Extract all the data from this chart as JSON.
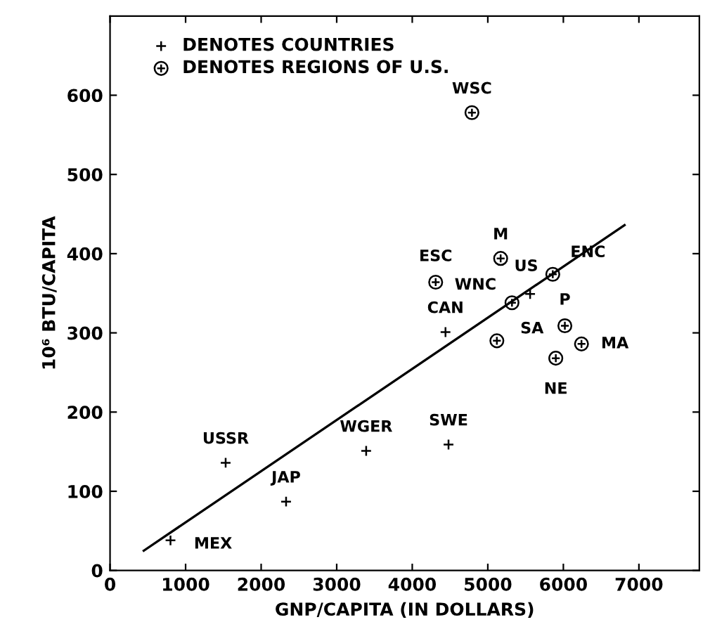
{
  "chart_data": {
    "type": "scatter",
    "xlabel": "GNP/CAPITA (IN DOLLARS)",
    "ylabel": "10⁶ BTU/CAPITA",
    "xlim": [
      0,
      7800
    ],
    "ylim": [
      0,
      700
    ],
    "xticks": [
      0,
      1000,
      2000,
      3000,
      4000,
      5000,
      6000,
      7000
    ],
    "yticks": [
      0,
      100,
      200,
      300,
      400,
      500,
      600
    ],
    "grid": false,
    "legend": "top left",
    "series": [
      {
        "name": "DENOTES COUNTRIES",
        "marker": "cross",
        "color": "#000000",
        "x": [
          800,
          1530,
          2330,
          3390,
          4480,
          4440,
          5560
        ],
        "values": [
          38,
          136,
          87,
          151,
          159,
          301,
          349
        ]
      },
      {
        "name": "DENOTES REGIONS OF U.S.",
        "color": "#000000",
        "x": [
          5120,
          5900,
          6240,
          6020,
          4790,
          5170,
          4310,
          5860,
          5320
        ],
        "values": [
          290,
          268,
          286,
          309,
          578,
          394,
          364,
          374,
          338
        ]
      },
      {
        "type": "line",
        "marker": "none",
        "line_style": "solid",
        "color": "#000000",
        "x": [
          446,
          6810
        ],
        "values": [
          25,
          436
        ]
      }
    ],
    "annotations": [
      {
        "text": "MEX",
        "x": 800,
        "y": 38
      },
      {
        "text": "USSR",
        "x": 1530,
        "y": 136
      },
      {
        "text": "JAP",
        "x": 2330,
        "y": 87
      },
      {
        "text": "WGER",
        "x": 3390,
        "y": 151
      },
      {
        "text": "SWE",
        "x": 4480,
        "y": 159
      },
      {
        "text": "CAN",
        "x": 4440,
        "y": 301
      },
      {
        "text": "US",
        "x": 5560,
        "y": 349
      },
      {
        "text": "SA",
        "x": 5120,
        "y": 290
      },
      {
        "text": "NE",
        "x": 5900,
        "y": 268
      },
      {
        "text": "MA",
        "x": 6240,
        "y": 286
      },
      {
        "text": "P",
        "x": 6020,
        "y": 309
      },
      {
        "text": "WSC",
        "x": 4790,
        "y": 578
      },
      {
        "text": "M",
        "x": 5170,
        "y": 394
      },
      {
        "text": "ESC",
        "x": 4310,
        "y": 364
      },
      {
        "text": "ENC",
        "x": 5860,
        "y": 374
      },
      {
        "text": "WNC",
        "x": 5320,
        "y": 338
      }
    ]
  }
}
